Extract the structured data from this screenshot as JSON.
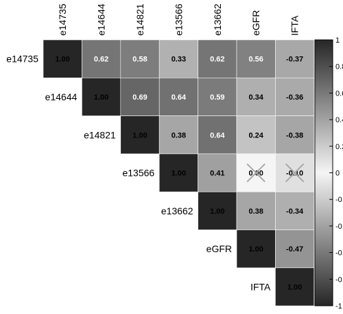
{
  "chart_data": {
    "type": "heatmap",
    "variables": [
      "e14735",
      "e14644",
      "e14821",
      "e13566",
      "e13662",
      "eGFR",
      "IFTA"
    ],
    "matrix": [
      [
        1.0,
        0.62,
        0.58,
        0.33,
        0.62,
        0.56,
        -0.37
      ],
      [
        null,
        1.0,
        0.69,
        0.64,
        0.59,
        0.34,
        -0.36
      ],
      [
        null,
        null,
        1.0,
        0.38,
        0.64,
        0.24,
        -0.38
      ],
      [
        null,
        null,
        null,
        1.0,
        0.41,
        0.0,
        -0.1
      ],
      [
        null,
        null,
        null,
        null,
        1.0,
        0.38,
        -0.34
      ],
      [
        null,
        null,
        null,
        null,
        null,
        1.0,
        -0.47
      ],
      [
        null,
        null,
        null,
        null,
        null,
        null,
        1.0
      ]
    ],
    "value_labels": [
      [
        "1.00",
        "0.62",
        "0.58",
        "0.33",
        "0.62",
        "0.56",
        "-0.37"
      ],
      [
        "",
        "1.00",
        "0.69",
        "0.64",
        "0.59",
        "0.34",
        "-0.36"
      ],
      [
        "",
        "",
        "1.00",
        "0.38",
        "0.64",
        "0.24",
        "-0.38"
      ],
      [
        "",
        "",
        "",
        "1.00",
        "0.41",
        "0.00",
        "-0.10"
      ],
      [
        "",
        "",
        "",
        "",
        "1.00",
        "0.38",
        "-0.34"
      ],
      [
        "",
        "",
        "",
        "",
        "",
        "1.00",
        "-0.47"
      ],
      [
        "",
        "",
        "",
        "",
        "",
        "",
        "1.00"
      ]
    ],
    "crossed_cells": [
      [
        3,
        5
      ],
      [
        3,
        6
      ]
    ],
    "triangle": "upper",
    "color_scale": {
      "min": -1,
      "max": 1,
      "ticks": [
        1,
        0.8,
        0.6,
        0.4,
        0.2,
        0,
        -0.2,
        -0.4,
        -0.6,
        -0.8,
        -1
      ],
      "tick_labels": [
        "1",
        "0.8",
        "0.6",
        "0.4",
        "0.2",
        "0",
        "-0.2",
        "-0.4",
        "-0.6",
        "-0.8",
        "-1"
      ],
      "legend_position": "right"
    },
    "colors": {
      "strong": "#262626",
      "neutral": "#f5f5f5",
      "cross": "#a8a8a8"
    }
  }
}
